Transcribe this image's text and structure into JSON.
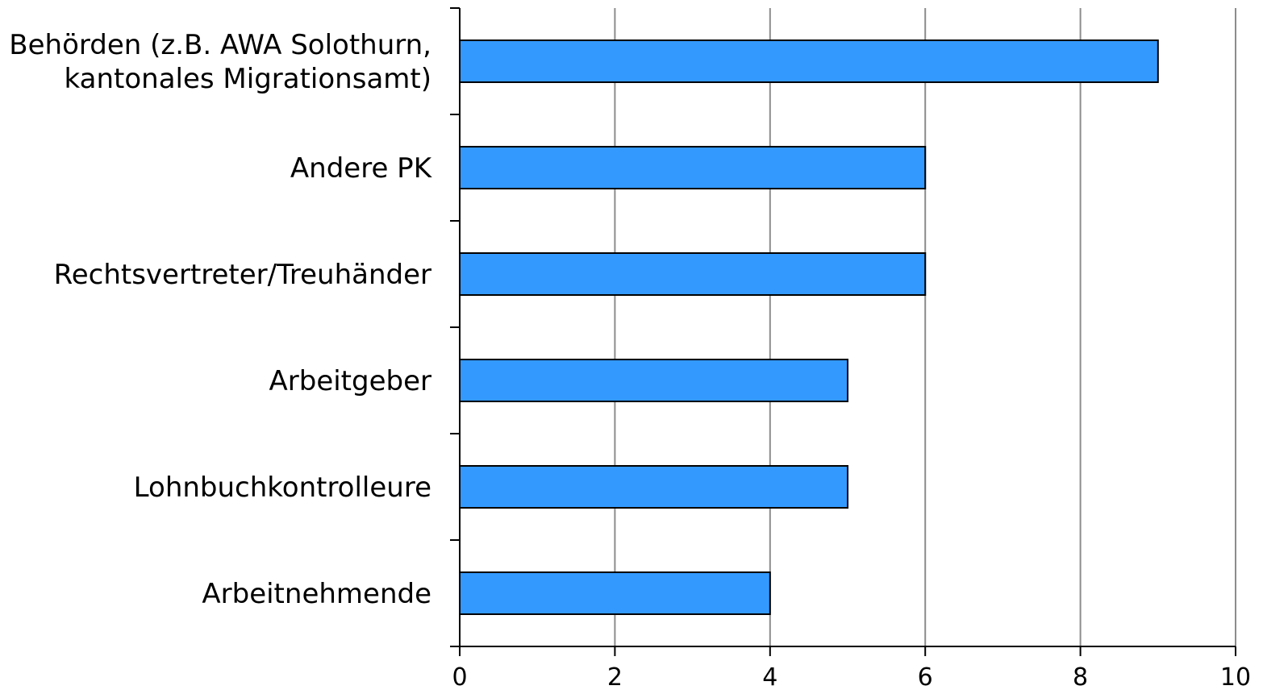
{
  "chart_data": {
    "type": "bar",
    "orientation": "horizontal",
    "categories": [
      [
        "Behörden (z.B. AWA Solothurn,",
        "kantonales Migrationsamt)"
      ],
      [
        "Andere PK"
      ],
      [
        "Rechtsvertreter/Treuhänder"
      ],
      [
        "Arbeitgeber"
      ],
      [
        "Lohnbuchkontrolleure"
      ],
      [
        "Arbeitnehmende"
      ]
    ],
    "values": [
      9,
      6,
      6,
      5,
      5,
      4
    ],
    "xlim": [
      0,
      10
    ],
    "xticks": [
      0,
      2,
      4,
      6,
      8,
      10
    ],
    "xtick_labels": [
      "0",
      "2",
      "4",
      "6",
      "8",
      "10"
    ],
    "title": "",
    "xlabel": "",
    "ylabel": "",
    "grid": "vertical",
    "legend": "none",
    "colors": {
      "bar_fill": "#3399ff",
      "bar_stroke": "#000000",
      "grid": "#8c8c8c",
      "axis": "#000000"
    }
  }
}
